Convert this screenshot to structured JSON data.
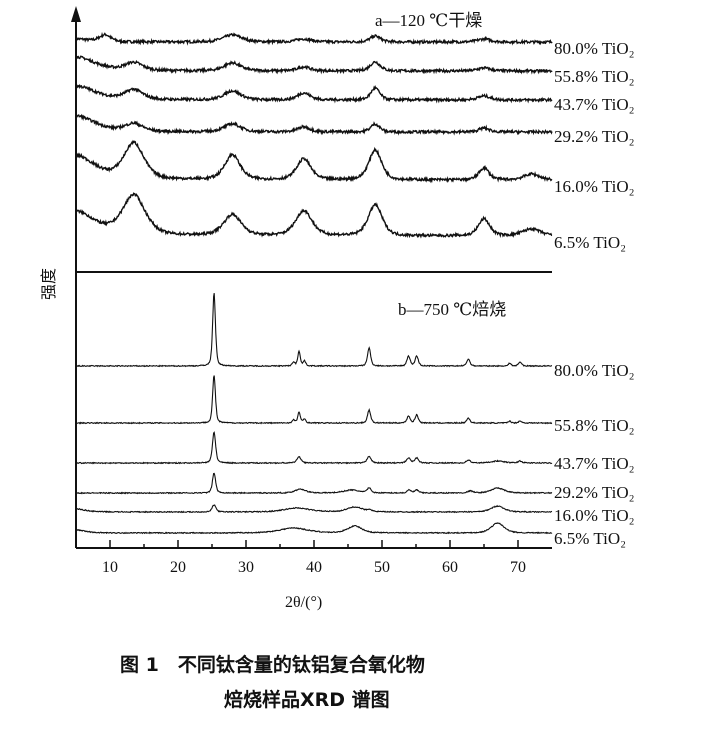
{
  "chart_data": [
    {
      "type": "line",
      "panel": "a",
      "title": "a—120 ℃干燥",
      "xlabel": "2θ/(°)",
      "ylabel": "强度",
      "xlim": [
        5,
        75
      ],
      "xticks": [
        10,
        20,
        30,
        40,
        50,
        60,
        70
      ],
      "grid": false,
      "series": [
        {
          "name": "80.0% TiO₂",
          "peaks": [
            {
              "x": 5,
              "y": 3,
              "w": 2
            },
            {
              "x": 9.3,
              "y": 7,
              "w": 0.9
            },
            {
              "x": 28,
              "y": 7,
              "w": 1.5
            },
            {
              "x": 38.5,
              "y": 3,
              "w": 1.2
            },
            {
              "x": 49,
              "y": 6,
              "w": 0.8
            },
            {
              "x": 65,
              "y": 3,
              "w": 1
            }
          ]
        },
        {
          "name": "55.8% TiO₂",
          "peaks": [
            {
              "x": 5,
              "y": 14,
              "w": 3
            },
            {
              "x": 13.5,
              "y": 8,
              "w": 1.4
            },
            {
              "x": 28,
              "y": 8,
              "w": 1.3
            },
            {
              "x": 38.5,
              "y": 4,
              "w": 1
            },
            {
              "x": 49,
              "y": 9,
              "w": 0.8
            },
            {
              "x": 65,
              "y": 3,
              "w": 1
            }
          ]
        },
        {
          "name": "43.7% TiO₂",
          "peaks": [
            {
              "x": 5,
              "y": 14,
              "w": 3
            },
            {
              "x": 13.5,
              "y": 10,
              "w": 1.4
            },
            {
              "x": 28,
              "y": 9,
              "w": 1.3
            },
            {
              "x": 38.5,
              "y": 7,
              "w": 1
            },
            {
              "x": 49,
              "y": 12,
              "w": 0.7
            },
            {
              "x": 65,
              "y": 4,
              "w": 1
            }
          ]
        },
        {
          "name": "29.2% TiO₂",
          "peaks": [
            {
              "x": 5,
              "y": 16,
              "w": 3
            },
            {
              "x": 13.5,
              "y": 8,
              "w": 1.4
            },
            {
              "x": 28,
              "y": 8,
              "w": 1.3
            },
            {
              "x": 38.5,
              "y": 5,
              "w": 1
            },
            {
              "x": 49,
              "y": 8,
              "w": 0.7
            },
            {
              "x": 65,
              "y": 4,
              "w": 0.8
            }
          ]
        },
        {
          "name": "16.0% TiO₂",
          "peaks": [
            {
              "x": 5,
              "y": 24,
              "w": 3
            },
            {
              "x": 13.5,
              "y": 36,
              "w": 1.6
            },
            {
              "x": 28,
              "y": 25,
              "w": 1.2
            },
            {
              "x": 38.5,
              "y": 21,
              "w": 1.1
            },
            {
              "x": 49,
              "y": 30,
              "w": 1
            },
            {
              "x": 65,
              "y": 12,
              "w": 0.8
            },
            {
              "x": 72,
              "y": 6,
              "w": 1.2
            }
          ]
        },
        {
          "name": "6.5% TiO₂",
          "peaks": [
            {
              "x": 5,
              "y": 24,
              "w": 3
            },
            {
              "x": 13.5,
              "y": 40,
              "w": 1.8
            },
            {
              "x": 28,
              "y": 21,
              "w": 1.4
            },
            {
              "x": 38.5,
              "y": 25,
              "w": 1.3
            },
            {
              "x": 49,
              "y": 31,
              "w": 1.1
            },
            {
              "x": 65,
              "y": 17,
              "w": 0.9
            },
            {
              "x": 72,
              "y": 7,
              "w": 1.4
            }
          ]
        }
      ]
    },
    {
      "type": "line",
      "panel": "b",
      "title": "b—750 ℃焙烧",
      "xlabel": "2θ/(°)",
      "ylabel": "强度",
      "xlim": [
        5,
        75
      ],
      "xticks": [
        10,
        20,
        30,
        40,
        50,
        60,
        70
      ],
      "grid": false,
      "series": [
        {
          "name": "80.0% TiO₂",
          "peaks": [
            {
              "x": 25.3,
              "y": 73,
              "w": 0.22
            },
            {
              "x": 37.0,
              "y": 4,
              "w": 0.2
            },
            {
              "x": 37.8,
              "y": 15,
              "w": 0.2
            },
            {
              "x": 38.6,
              "y": 5,
              "w": 0.2
            },
            {
              "x": 48.1,
              "y": 18,
              "w": 0.25
            },
            {
              "x": 53.9,
              "y": 10,
              "w": 0.25
            },
            {
              "x": 55.1,
              "y": 10,
              "w": 0.25
            },
            {
              "x": 62.7,
              "y": 7,
              "w": 0.25
            },
            {
              "x": 68.8,
              "y": 3,
              "w": 0.2
            },
            {
              "x": 70.3,
              "y": 4,
              "w": 0.25
            }
          ]
        },
        {
          "name": "55.8% TiO₂",
          "peaks": [
            {
              "x": 25.3,
              "y": 48,
              "w": 0.22
            },
            {
              "x": 37.0,
              "y": 3,
              "w": 0.2
            },
            {
              "x": 37.8,
              "y": 11,
              "w": 0.2
            },
            {
              "x": 38.6,
              "y": 4,
              "w": 0.2
            },
            {
              "x": 48.1,
              "y": 13,
              "w": 0.25
            },
            {
              "x": 53.9,
              "y": 7,
              "w": 0.25
            },
            {
              "x": 55.1,
              "y": 8,
              "w": 0.25
            },
            {
              "x": 62.7,
              "y": 5,
              "w": 0.25
            },
            {
              "x": 68.8,
              "y": 2,
              "w": 0.2
            },
            {
              "x": 70.3,
              "y": 2,
              "w": 0.25
            }
          ]
        },
        {
          "name": "43.7% TiO₂",
          "peaks": [
            {
              "x": 25.3,
              "y": 31,
              "w": 0.25
            },
            {
              "x": 37.8,
              "y": 6,
              "w": 0.35
            },
            {
              "x": 48.1,
              "y": 7,
              "w": 0.3
            },
            {
              "x": 53.9,
              "y": 5,
              "w": 0.3
            },
            {
              "x": 55.1,
              "y": 5,
              "w": 0.3
            },
            {
              "x": 62.7,
              "y": 3,
              "w": 0.3
            },
            {
              "x": 67,
              "y": 2,
              "w": 1
            },
            {
              "x": 70.3,
              "y": 2,
              "w": 0.3
            }
          ]
        },
        {
          "name": "29.2% TiO₂",
          "peaks": [
            {
              "x": 25.3,
              "y": 20,
              "w": 0.25
            },
            {
              "x": 38,
              "y": 4,
              "w": 0.8
            },
            {
              "x": 45.5,
              "y": 3,
              "w": 1.2
            },
            {
              "x": 48.1,
              "y": 5,
              "w": 0.3
            },
            {
              "x": 54,
              "y": 3,
              "w": 0.3
            },
            {
              "x": 55.1,
              "y": 3,
              "w": 0.3
            },
            {
              "x": 63,
              "y": 2,
              "w": 0.4
            },
            {
              "x": 67,
              "y": 5,
              "w": 1
            }
          ]
        },
        {
          "name": "16.0% TiO₂",
          "peaks": [
            {
              "x": 5,
              "y": 3,
              "w": 1.5
            },
            {
              "x": 25.3,
              "y": 7,
              "w": 0.3
            },
            {
              "x": 37.5,
              "y": 4,
              "w": 2
            },
            {
              "x": 46,
              "y": 5,
              "w": 1.2
            },
            {
              "x": 48.2,
              "y": 2,
              "w": 0.3
            },
            {
              "x": 67,
              "y": 6,
              "w": 1
            }
          ]
        },
        {
          "name": "6.5% TiO₂",
          "peaks": [
            {
              "x": 5,
              "y": 3,
              "w": 1.5
            },
            {
              "x": 37,
              "y": 5,
              "w": 2.2
            },
            {
              "x": 46,
              "y": 7,
              "w": 1.1
            },
            {
              "x": 67,
              "y": 10,
              "w": 1
            }
          ]
        }
      ]
    }
  ],
  "caption": {
    "line1": "图 1　不同钛含量的钛铝复合氧化物",
    "line2": "焙烧样品XRD 谱图"
  },
  "colors": {
    "line": "#111111",
    "background": "#ffffff"
  }
}
